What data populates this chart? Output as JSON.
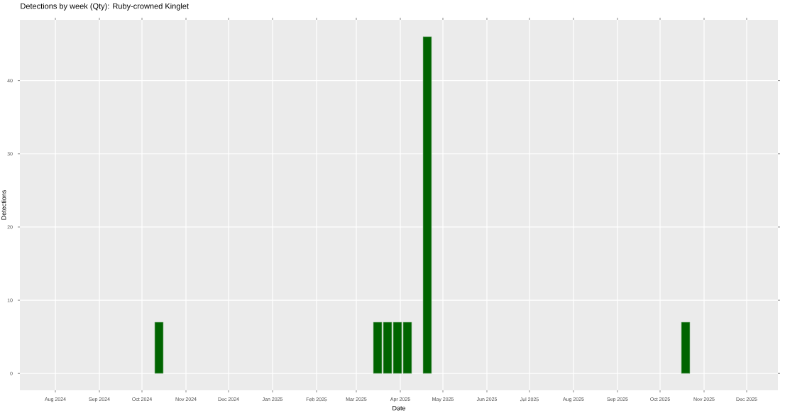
{
  "chart_data": {
    "type": "bar",
    "title": "Detections by week (Qty): Ruby-crowned Kinglet",
    "xlabel": "Date",
    "ylabel": "Detections",
    "x": [
      "2024-10-13",
      "2025-03-16",
      "2025-03-23",
      "2025-03-30",
      "2025-04-06",
      "2025-04-20",
      "2025-10-19"
    ],
    "values": [
      7,
      7,
      7,
      7,
      7,
      46,
      7
    ],
    "color": "#006400",
    "xlim": [
      "2024-07-07",
      "2025-12-23"
    ],
    "xticks": [
      {
        "value": "2024-08-01",
        "label": "Aug 2024"
      },
      {
        "value": "2024-09-01",
        "label": "Sep 2024"
      },
      {
        "value": "2024-10-01",
        "label": "Oct 2024"
      },
      {
        "value": "2024-11-01",
        "label": "Nov 2024"
      },
      {
        "value": "2024-12-01",
        "label": "Dec 2024"
      },
      {
        "value": "2025-01-01",
        "label": "Jan 2025"
      },
      {
        "value": "2025-02-01",
        "label": "Feb 2025"
      },
      {
        "value": "2025-03-01",
        "label": "Mar 2025"
      },
      {
        "value": "2025-04-01",
        "label": "Apr 2025"
      },
      {
        "value": "2025-05-01",
        "label": "May 2025"
      },
      {
        "value": "2025-06-01",
        "label": "Jun 2025"
      },
      {
        "value": "2025-07-01",
        "label": "Jul 2025"
      },
      {
        "value": "2025-08-01",
        "label": "Aug 2025"
      },
      {
        "value": "2025-09-01",
        "label": "Sep 2025"
      },
      {
        "value": "2025-10-01",
        "label": "Oct 2025"
      },
      {
        "value": "2025-11-01",
        "label": "Nov 2025"
      },
      {
        "value": "2025-12-01",
        "label": "Dec 2025"
      }
    ],
    "ylim": [
      -2.3,
      48.3
    ],
    "yticks": [
      0,
      10,
      20,
      30,
      40
    ],
    "grid": true
  }
}
